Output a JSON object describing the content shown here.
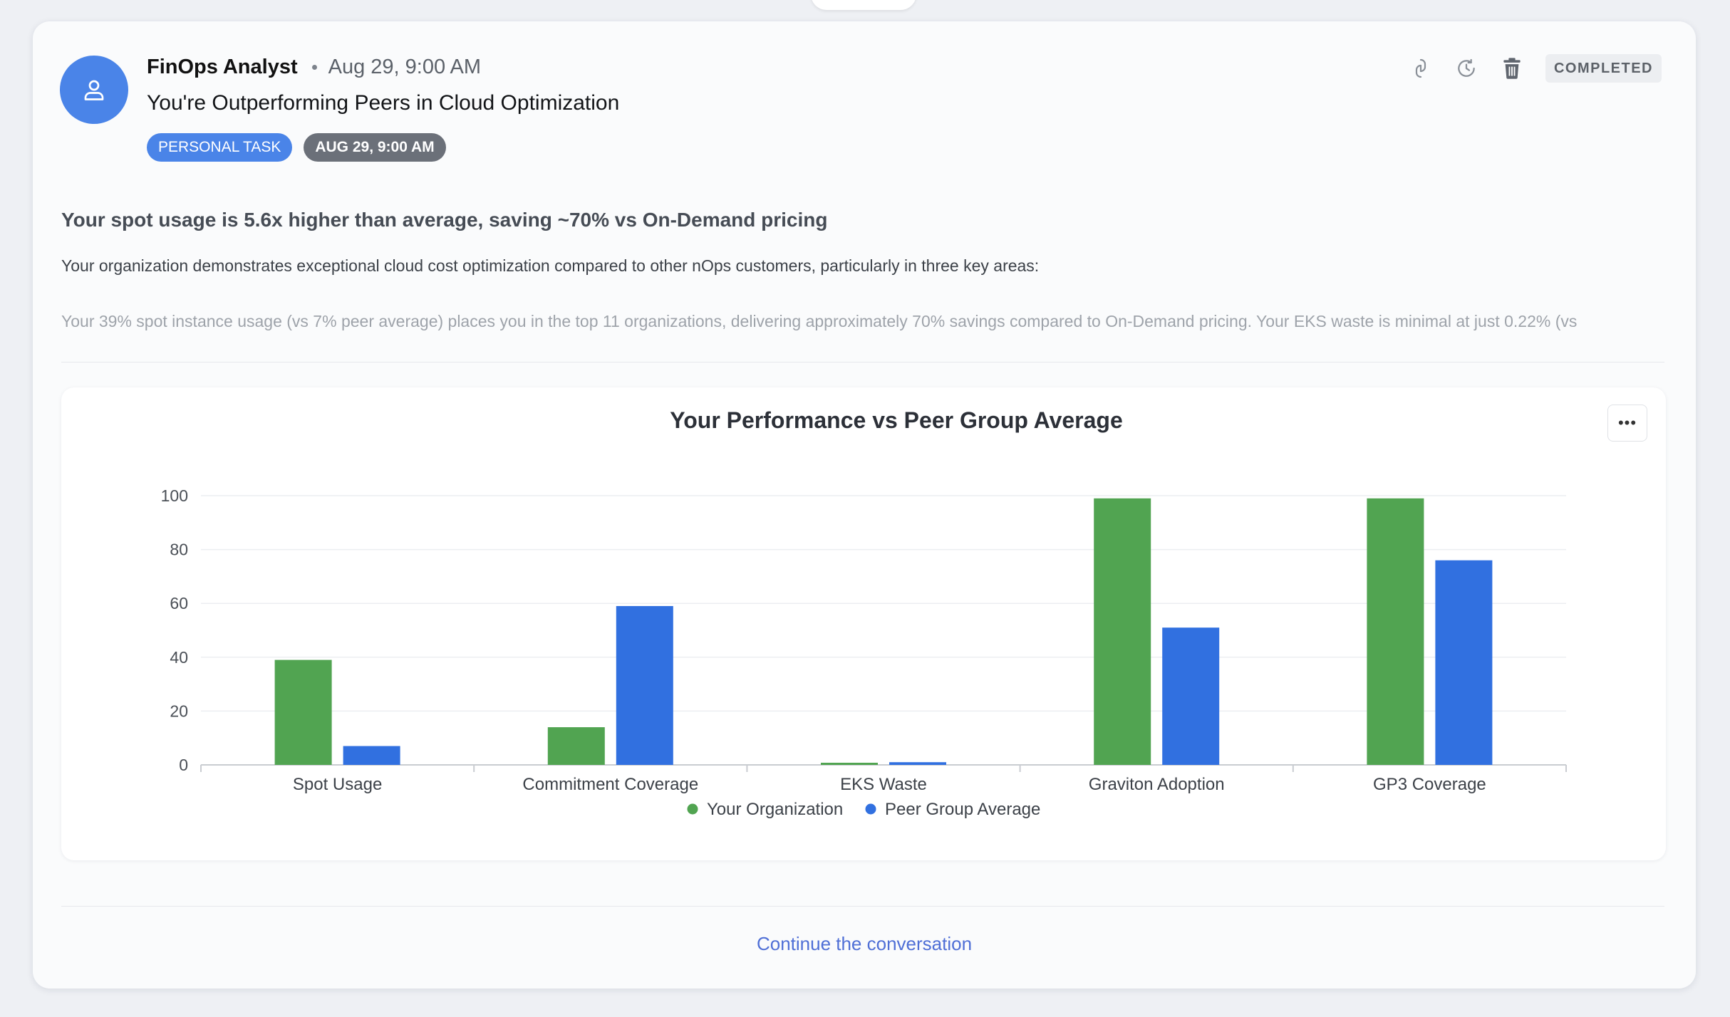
{
  "post": {
    "author": "FinOps Analyst",
    "timestamp": "Aug 29, 9:00 AM",
    "title": "You're Outperforming Peers in Cloud Optimization",
    "tags": [
      "PERSONAL TASK",
      "AUG 29, 9:00 AM"
    ],
    "status": "COMPLETED",
    "headline": "Your spot usage is 5.6x higher than average, saving ~70% vs On-Demand pricing",
    "intro": "Your organization demonstrates exceptional cloud cost optimization compared to other nOps customers, particularly in three key areas:",
    "preview": "Your 39% spot instance usage (vs 7% peer average) places you in the top 11 organizations, delivering approximately 70% savings compared to On-Demand pricing. Your EKS waste is minimal at just 0.22% (vs"
  },
  "icons": {
    "avatar": "user-icon",
    "link": "link-icon",
    "sync": "sync-icon",
    "delete": "trash-icon",
    "more": "more-horizontal-icon"
  },
  "chart_data": {
    "type": "bar",
    "title": "Your Performance vs Peer Group Average",
    "categories": [
      "Spot Usage",
      "Commitment Coverage",
      "EKS Waste",
      "Graviton Adoption",
      "GP3 Coverage"
    ],
    "series": [
      {
        "name": "Your Organization",
        "color": "#51a451",
        "values": [
          39,
          14,
          0.22,
          99,
          99
        ]
      },
      {
        "name": "Peer Group Average",
        "color": "#3170e0",
        "values": [
          7,
          59,
          1,
          51,
          76
        ]
      }
    ],
    "ylim": [
      0,
      100
    ],
    "yticks": [
      0,
      20,
      40,
      60,
      80,
      100
    ],
    "grid": true,
    "legend": "bottom-center"
  },
  "footer": {
    "continue_label": "Continue the conversation"
  }
}
